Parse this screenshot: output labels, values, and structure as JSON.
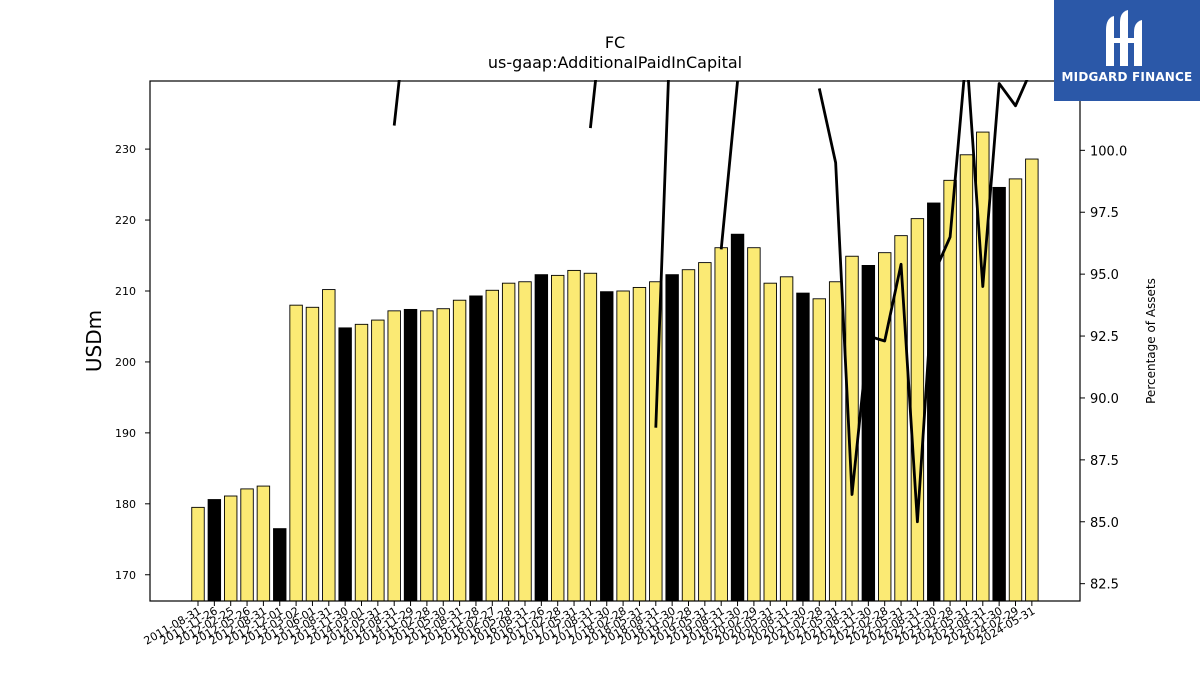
{
  "chart_data": {
    "type": "bar",
    "title": "FC",
    "subtitle": "us-gaap:AdditionalPaidInCapital",
    "ylabel": "USDm",
    "y2label": "Percentage of Assets",
    "ylim": [
      166.3,
      239.6
    ],
    "y2lim": [
      81.8,
      102.8
    ],
    "yticks": [
      170,
      180,
      190,
      200,
      210,
      220,
      230
    ],
    "y2ticks": [
      82.5,
      85.0,
      87.5,
      90.0,
      92.5,
      95.0,
      97.5,
      100.0,
      102.5
    ],
    "bar_fill": "#fbea74",
    "bar_fill_alt": "#000000",
    "line_color": "#000000",
    "categories": [
      "2011-08-31",
      "2011-11-26",
      "2012-02-25",
      "2012-05-26",
      "2012-08-31",
      "2012-12-01",
      "2013-03-02",
      "2013-06-01",
      "2013-08-31",
      "2013-11-30",
      "2014-03-01",
      "2014-05-31",
      "2014-08-31",
      "2014-11-29",
      "2015-02-28",
      "2015-05-30",
      "2015-08-31",
      "2015-11-28",
      "2016-02-27",
      "2016-05-28",
      "2016-08-31",
      "2016-11-26",
      "2017-02-28",
      "2017-05-31",
      "2017-08-31",
      "2017-11-30",
      "2018-02-28",
      "2018-05-31",
      "2018-08-31",
      "2018-11-30",
      "2019-02-28",
      "2019-05-31",
      "2019-08-31",
      "2019-11-30",
      "2020-02-29",
      "2020-05-31",
      "2020-08-31",
      "2020-11-30",
      "2021-02-28",
      "2021-05-31",
      "2021-08-31",
      "2021-11-30",
      "2022-02-28",
      "2022-05-31",
      "2022-08-31",
      "2022-11-30",
      "2023-02-28",
      "2023-05-31",
      "2023-08-31",
      "2023-11-30",
      "2024-02-29",
      "2024-05-31"
    ],
    "values": [
      179.5,
      180.6,
      181.1,
      182.1,
      182.5,
      176.5,
      208.0,
      207.7,
      210.2,
      204.8,
      205.3,
      205.9,
      207.2,
      207.4,
      207.2,
      207.5,
      208.7,
      209.3,
      210.1,
      211.1,
      211.3,
      212.3,
      212.2,
      212.9,
      212.5,
      209.9,
      210.0,
      210.5,
      211.3,
      212.3,
      213.0,
      214.0,
      216.1,
      218.0,
      216.1,
      211.1,
      212.0,
      209.7,
      208.9,
      211.3,
      214.9,
      213.6,
      215.4,
      217.8,
      220.2,
      222.4,
      225.6,
      229.2,
      232.4,
      224.6,
      225.8,
      228.6
    ],
    "highlight": [
      false,
      true,
      false,
      false,
      false,
      true,
      false,
      false,
      false,
      true,
      false,
      false,
      false,
      true,
      false,
      false,
      false,
      true,
      false,
      false,
      false,
      true,
      false,
      false,
      false,
      true,
      false,
      false,
      false,
      true,
      false,
      false,
      false,
      true,
      false,
      false,
      false,
      true,
      false,
      false,
      false,
      true,
      false,
      false,
      false,
      true,
      false,
      false,
      false,
      true,
      false,
      false
    ],
    "series": [
      {
        "type": "line",
        "axis": "right",
        "values": [
          null,
          null,
          null,
          null,
          null,
          null,
          null,
          null,
          null,
          null,
          null,
          null,
          101.0,
          107.0,
          null,
          null,
          null,
          null,
          null,
          null,
          null,
          null,
          null,
          null,
          100.9,
          107.0,
          null,
          null,
          88.8,
          107.0,
          null,
          null,
          96.0,
          102.8,
          null,
          null,
          103.2,
          null,
          102.5,
          99.5,
          86.1,
          92.5,
          92.3,
          95.4,
          85.0,
          95.0,
          96.5,
          104.0,
          94.5,
          102.7,
          101.8,
          103.3
        ]
      }
    ]
  },
  "logo": {
    "text": "MIDGARD FINANCE",
    "background": "#2b58a8"
  }
}
